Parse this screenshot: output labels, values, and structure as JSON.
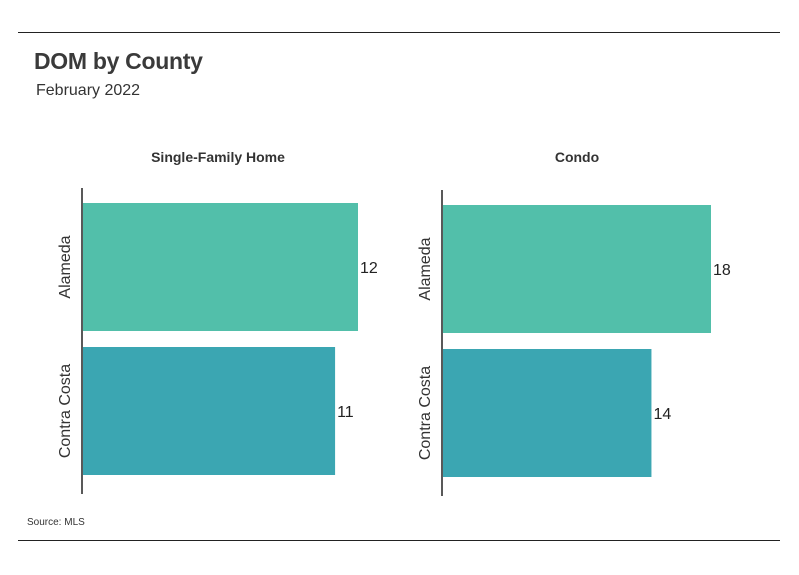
{
  "header": {
    "title": "DOM by County",
    "subtitle": "February 2022"
  },
  "footer": {
    "source": "Source:  MLS"
  },
  "chart_data": [
    {
      "type": "bar",
      "orientation": "horizontal",
      "title": "Single-Family Home",
      "categories": [
        "Alameda",
        "Contra Costa"
      ],
      "values": [
        12,
        11
      ],
      "colors": [
        "#52bfaa",
        "#3ba6b2"
      ],
      "xlim": [
        0,
        12
      ],
      "data_labels": true,
      "grid": false
    },
    {
      "type": "bar",
      "orientation": "horizontal",
      "title": "Condo",
      "categories": [
        "Alameda",
        "Contra Costa"
      ],
      "values": [
        18,
        14
      ],
      "colors": [
        "#52bfaa",
        "#3ba6b2"
      ],
      "xlim": [
        0,
        18
      ],
      "data_labels": true,
      "grid": false
    }
  ]
}
